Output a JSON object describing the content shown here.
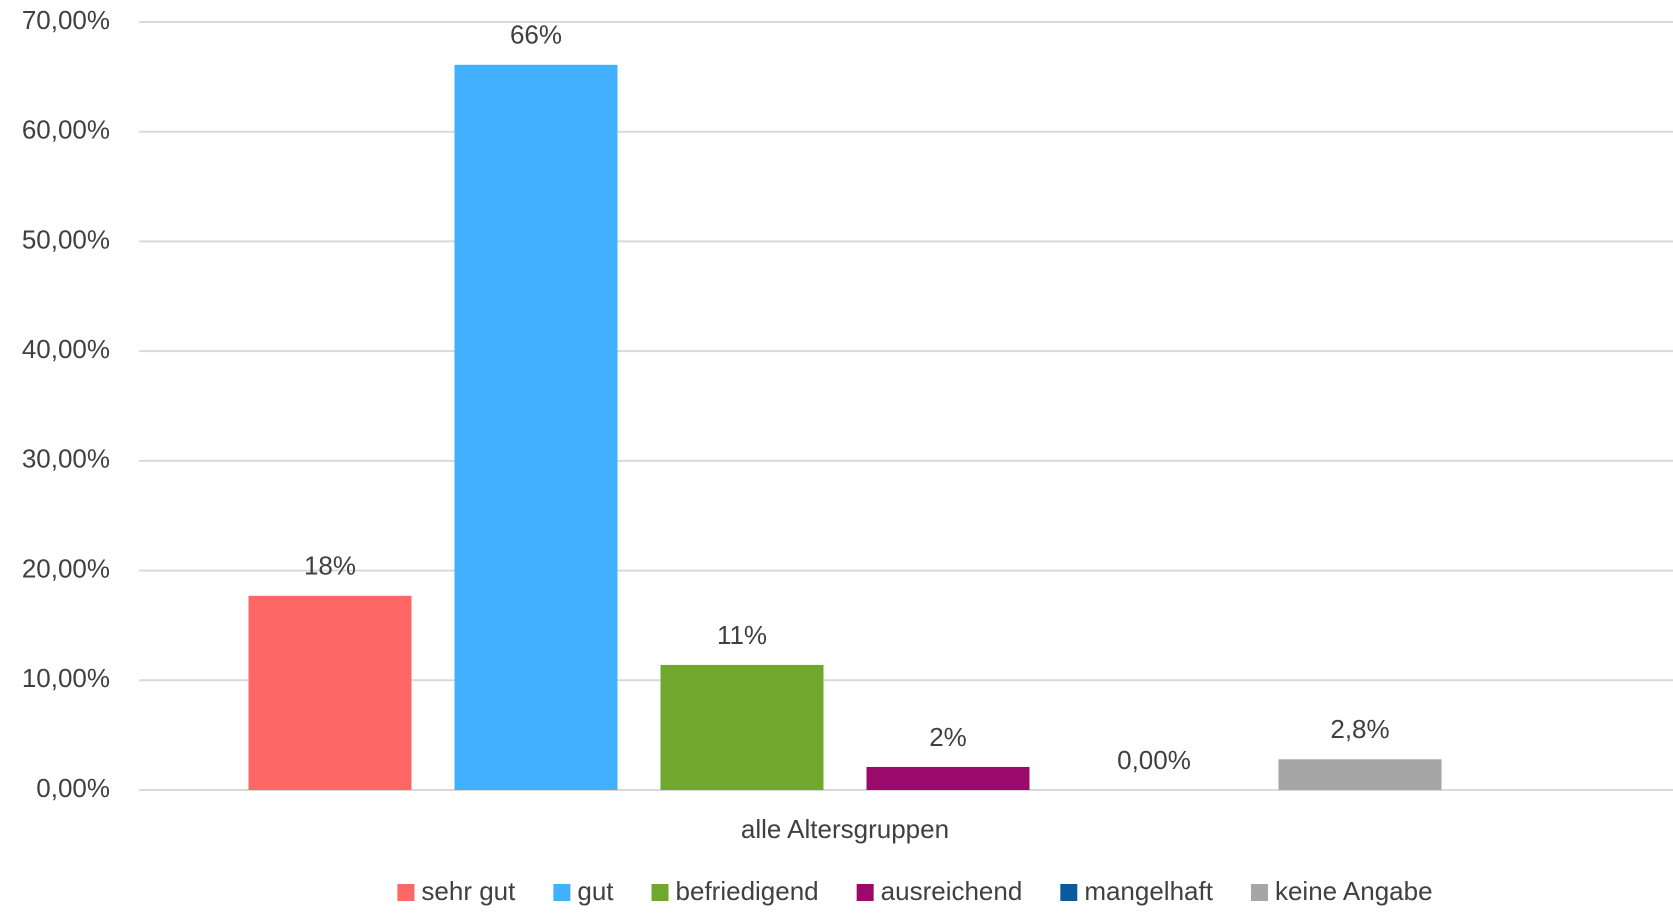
{
  "chart_data": {
    "type": "bar",
    "categories": [
      "alle Altersgruppen"
    ],
    "series": [
      {
        "name": "sehr gut",
        "color": "#ff6666",
        "values": [
          17.7
        ],
        "value_labels": [
          "18%"
        ]
      },
      {
        "name": "gut",
        "color": "#41b0ff",
        "values": [
          66.1
        ],
        "value_labels": [
          "66%"
        ]
      },
      {
        "name": "befriedigend",
        "color": "#70a82e",
        "values": [
          11.4
        ],
        "value_labels": [
          "11%"
        ]
      },
      {
        "name": "ausreichend",
        "color": "#9b0a6a",
        "values": [
          2.1
        ],
        "value_labels": [
          "2%"
        ]
      },
      {
        "name": "mangelhaft",
        "color": "#0a5a9c",
        "values": [
          0
        ],
        "value_labels": [
          "0,00%"
        ]
      },
      {
        "name": "keine Angabe",
        "color": "#a6a6a6",
        "values": [
          2.8
        ],
        "value_labels": [
          "2,8%"
        ]
      }
    ],
    "ylim": [
      0,
      70
    ],
    "yticks": [
      {
        "value": 0,
        "label": "0,00%"
      },
      {
        "value": 10,
        "label": "10,00%"
      },
      {
        "value": 20,
        "label": "20,00%"
      },
      {
        "value": 30,
        "label": "30,00%"
      },
      {
        "value": 40,
        "label": "40,00%"
      },
      {
        "value": 50,
        "label": "50,00%"
      },
      {
        "value": 60,
        "label": "60,00%"
      },
      {
        "value": 70,
        "label": "70,00%"
      }
    ],
    "grid": true,
    "legend": "bottom"
  }
}
